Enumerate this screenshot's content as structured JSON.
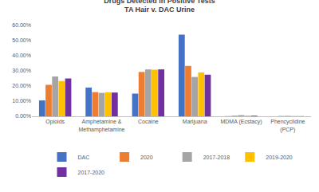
{
  "chart_data": {
    "type": "bar",
    "title": "Drugs Detected in Positive Tests",
    "subtitle": "TA Hair v. DAC Urine",
    "categories": [
      "Opioids",
      "Amphetamine & Methamphetamine",
      "Cocaine",
      "Marijuana",
      "MDMA (Ecstacy)",
      "Phencyclidine (PCP)"
    ],
    "series": [
      {
        "name": "DAC",
        "color": "#4472c4",
        "values": [
          10.5,
          19.0,
          15.0,
          54.0,
          0.1,
          0.0
        ]
      },
      {
        "name": "2020",
        "color": "#ed7d31",
        "values": [
          20.8,
          16.0,
          29.3,
          33.3,
          0.4,
          0.2
        ]
      },
      {
        "name": "2017-2018",
        "color": "#a5a5a5",
        "values": [
          26.3,
          15.5,
          31.0,
          26.0,
          0.8,
          0.3
        ]
      },
      {
        "name": "2019-2020",
        "color": "#ffc000",
        "values": [
          23.3,
          15.8,
          30.8,
          29.0,
          0.5,
          0.2
        ]
      },
      {
        "name": "2017-2020",
        "color": "#7030a0",
        "values": [
          25.0,
          15.7,
          31.0,
          27.5,
          0.4,
          0.1
        ]
      }
    ],
    "ylim": [
      0,
      60
    ],
    "yticks": [
      {
        "value": 0,
        "label": "0.00%"
      },
      {
        "value": 10,
        "label": "10.00%"
      },
      {
        "value": 20,
        "label": "20.00%"
      },
      {
        "value": 30,
        "label": "30.00%"
      },
      {
        "value": 40,
        "label": "40.00%"
      },
      {
        "value": 50,
        "label": "50.00%"
      },
      {
        "value": 60,
        "label": "60.00%"
      }
    ],
    "grid": false,
    "legend": "bottom"
  }
}
